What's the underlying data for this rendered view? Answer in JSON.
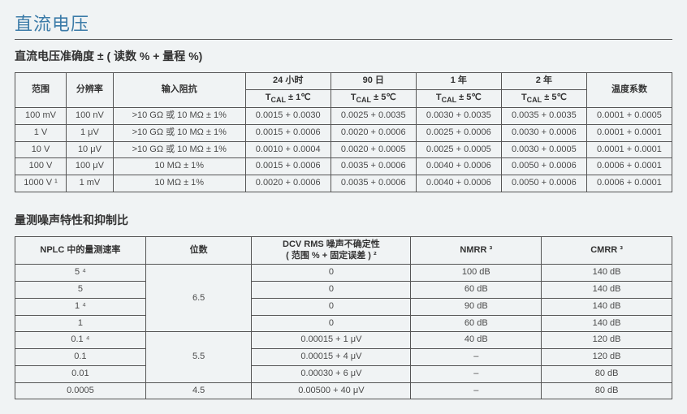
{
  "background_color": "#f0f3f4",
  "border_color": "#555555",
  "text_color": "#4a4a4a",
  "title_color": "#3b7ba8",
  "main_title": "直流电压",
  "section1_title": "直流电压准确度  ± ( 读数 % + 量程 %)",
  "table1": {
    "headers": {
      "range": "范围",
      "resolution": "分辨率",
      "input_impedance": "输入阻抗",
      "h24_l1": "24 小时",
      "h24_l2": "T_CAL  ± 1℃",
      "d90_l1": "90 日",
      "d90_l2": "T_CAL  ± 5℃",
      "y1_l1": "1 年",
      "y1_l2": "T_CAL  ± 5℃",
      "y2_l1": "2 年",
      "y2_l2": "T_CAL  ± 5℃",
      "tempco": "温度系数"
    },
    "rows": [
      {
        "range": "100 mV",
        "res": "100 nV",
        "imp": ">10 GΩ 或 10 MΩ  ± 1%",
        "h24": "0.0015 + 0.0030",
        "d90": "0.0025 + 0.0035",
        "y1": "0.0030 + 0.0035",
        "y2": "0.0035 + 0.0035",
        "tc": "0.0001 + 0.0005"
      },
      {
        "range": "1 V",
        "res": "1 μV",
        "imp": ">10 GΩ 或 10 MΩ  ± 1%",
        "h24": "0.0015 + 0.0006",
        "d90": "0.0020 + 0.0006",
        "y1": "0.0025 + 0.0006",
        "y2": "0.0030 + 0.0006",
        "tc": "0.0001 + 0.0001"
      },
      {
        "range": "10 V",
        "res": "10 μV",
        "imp": ">10 GΩ 或 10 MΩ  ± 1%",
        "h24": "0.0010 + 0.0004",
        "d90": "0.0020 + 0.0005",
        "y1": "0.0025 + 0.0005",
        "y2": "0.0030 + 0.0005",
        "tc": "0.0001 + 0.0001"
      },
      {
        "range": "100 V",
        "res": "100 μV",
        "imp": "10 MΩ  ± 1%",
        "h24": "0.0015 + 0.0006",
        "d90": "0.0035 + 0.0006",
        "y1": "0.0040 + 0.0006",
        "y2": "0.0050 + 0.0006",
        "tc": "0.0006 + 0.0001"
      },
      {
        "range": "1000 V ¹",
        "res": "1 mV",
        "imp": "10 MΩ  ± 1%",
        "h24": "0.0020 + 0.0006",
        "d90": "0.0035 + 0.0006",
        "y1": "0.0040 + 0.0006",
        "y2": "0.0050 + 0.0006",
        "tc": "0.0006 + 0.0001"
      }
    ]
  },
  "section2_title": "量测噪声特性和抑制比",
  "table2": {
    "headers": {
      "nplc": "NPLC 中的量测速率",
      "digits": "位数",
      "noise_l1": "DCV RMS 噪声不确定性",
      "noise_l2": "( 范围 % + 固定误差 ) ²",
      "nmrr": "NMRR ³",
      "cmrr": "CMRR ³"
    },
    "digits_groups": [
      {
        "label": "6.5",
        "span": 4
      },
      {
        "label": "5.5",
        "span": 3
      },
      {
        "label": "4.5",
        "span": 1
      }
    ],
    "rows": [
      {
        "nplc": "5 ⁴",
        "noise": "0",
        "nmrr": "100 dB",
        "cmrr": "140 dB"
      },
      {
        "nplc": "5",
        "noise": "0",
        "nmrr": "60 dB",
        "cmrr": "140 dB"
      },
      {
        "nplc": "1 ⁴",
        "noise": "0",
        "nmrr": "90 dB",
        "cmrr": "140 dB"
      },
      {
        "nplc": "1",
        "noise": "0",
        "nmrr": "60 dB",
        "cmrr": "140 dB"
      },
      {
        "nplc": "0.1 ⁴",
        "noise": "0.00015 + 1 μV",
        "nmrr": "40 dB",
        "cmrr": "120 dB"
      },
      {
        "nplc": "0.1",
        "noise": "0.00015 + 4 μV",
        "nmrr": "–",
        "cmrr": "120 dB"
      },
      {
        "nplc": "0.01",
        "noise": "0.00030 + 6 μV",
        "nmrr": "–",
        "cmrr": "80 dB"
      },
      {
        "nplc": "0.0005",
        "noise": "0.00500 + 40 μV",
        "nmrr": "–",
        "cmrr": "80 dB"
      }
    ]
  }
}
